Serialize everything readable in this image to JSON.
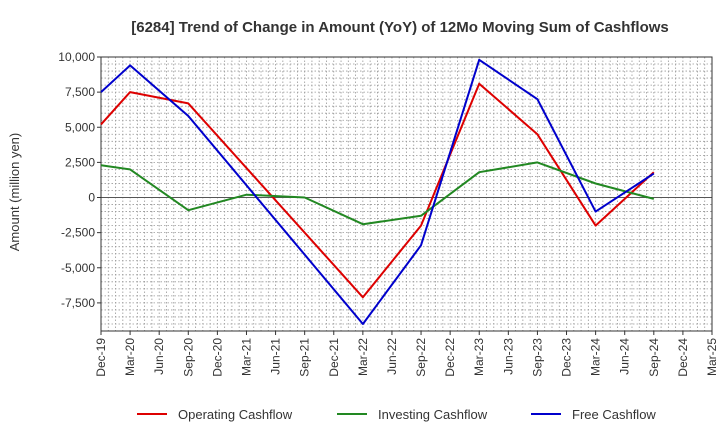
{
  "chart_data": {
    "type": "line",
    "title": "[6284]  Trend of Change in Amount (YoY) of 12Mo Moving Sum of Cashflows",
    "xlabel": "",
    "ylabel": "Amount (million yen)",
    "ylim": [
      -9500,
      10000
    ],
    "y_ticks": [
      10000,
      7500,
      5000,
      2500,
      0,
      -2500,
      -5000,
      -7500
    ],
    "y_tick_labels": [
      "10,000",
      "7,500",
      "5,000",
      "2,500",
      "0",
      "-2,500",
      "-5,000",
      "-7,500"
    ],
    "categories": [
      "Dec-19",
      "Mar-20",
      "Jun-20",
      "Sep-20",
      "Dec-20",
      "Mar-21",
      "Jun-21",
      "Sep-21",
      "Dec-21",
      "Mar-22",
      "Jun-22",
      "Sep-22",
      "Dec-22",
      "Mar-23",
      "Jun-23",
      "Sep-23",
      "Dec-23",
      "Mar-24",
      "Jun-24",
      "Sep-24",
      "Dec-24",
      "Mar-25"
    ],
    "grid": true,
    "legend_position": "bottom",
    "series": [
      {
        "name": "Operating Cashflow",
        "color": "#dd0000",
        "values": [
          5200,
          7500,
          null,
          6700,
          null,
          null,
          null,
          null,
          null,
          -7100,
          null,
          -2000,
          null,
          8100,
          null,
          4500,
          null,
          -2000,
          null,
          1800,
          null,
          null
        ]
      },
      {
        "name": "Investing Cashflow",
        "color": "#228822",
        "values": [
          2300,
          2000,
          null,
          -900,
          null,
          200,
          null,
          0,
          null,
          -1900,
          null,
          -1300,
          null,
          1800,
          null,
          2500,
          null,
          1000,
          null,
          -100,
          null,
          null
        ]
      },
      {
        "name": "Free Cashflow",
        "color": "#0000cc",
        "values": [
          7500,
          9400,
          null,
          5800,
          null,
          null,
          null,
          null,
          null,
          -9000,
          null,
          -3400,
          null,
          9800,
          null,
          7000,
          null,
          -1000,
          null,
          1700,
          null,
          null
        ]
      }
    ]
  }
}
